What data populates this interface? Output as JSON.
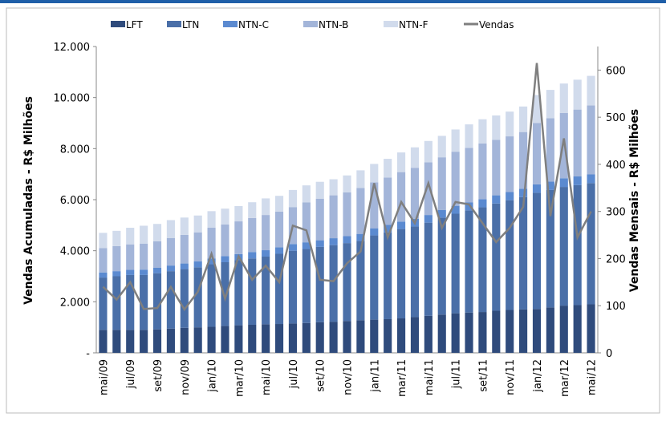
{
  "chart_data": {
    "type": "bar",
    "stacked": true,
    "y_label": "Vendas Acumuladas - R$ Milhões",
    "y2_label": "Vendas Mensais - R$ Milhões",
    "categories": [
      "mai/09",
      null,
      "jul/09",
      null,
      "set/09",
      null,
      "nov/09",
      null,
      "jan/10",
      null,
      "mar/10",
      null,
      "mai/10",
      null,
      "jul/10",
      null,
      "set/10",
      null,
      "nov/10",
      null,
      "jan/11",
      null,
      "mar/11",
      null,
      "mai/11",
      null,
      "jul/11",
      null,
      "set/11",
      null,
      "nov/11",
      null,
      "jan/12",
      null,
      "mar/12",
      null,
      "mai/12"
    ],
    "series": [
      {
        "name": "LFT",
        "color": "#2f4b7c",
        "values": [
          900,
          900,
          900,
          900,
          920,
          950,
          980,
          1000,
          1020,
          1050,
          1080,
          1100,
          1120,
          1130,
          1150,
          1170,
          1200,
          1220,
          1250,
          1280,
          1300,
          1320,
          1350,
          1400,
          1450,
          1500,
          1550,
          1580,
          1600,
          1650,
          1680,
          1700,
          1720,
          1780,
          1850,
          1870,
          1900
        ]
      },
      {
        "name": "LTN",
        "color": "#4a6fa8",
        "values": [
          2050,
          2100,
          2150,
          2150,
          2200,
          2250,
          2300,
          2350,
          2450,
          2500,
          2550,
          2600,
          2650,
          2750,
          2850,
          2900,
          2950,
          3000,
          3050,
          3100,
          3300,
          3400,
          3500,
          3550,
          3650,
          3800,
          3900,
          4000,
          4100,
          4200,
          4300,
          4400,
          4550,
          4600,
          4650,
          4700,
          4750
        ]
      },
      {
        "name": "NTN-C",
        "color": "#5b8ad0",
        "values": [
          200,
          200,
          200,
          210,
          210,
          220,
          220,
          230,
          230,
          240,
          240,
          250,
          250,
          250,
          260,
          260,
          260,
          270,
          270,
          280,
          280,
          290,
          290,
          300,
          300,
          300,
          310,
          310,
          320,
          320,
          320,
          330,
          330,
          330,
          340,
          340,
          340
        ]
      },
      {
        "name": "NTN-B",
        "color": "#a3b5d9",
        "values": [
          950,
          980,
          1000,
          1020,
          1040,
          1080,
          1120,
          1140,
          1200,
          1240,
          1280,
          1330,
          1380,
          1400,
          1450,
          1560,
          1630,
          1680,
          1720,
          1800,
          1800,
          1860,
          1940,
          2000,
          2060,
          2060,
          2120,
          2140,
          2180,
          2170,
          2180,
          2220,
          2400,
          2480,
          2560,
          2620,
          2700
        ]
      },
      {
        "name": "NTN-F",
        "color": "#d1dbec",
        "values": [
          600,
          600,
          650,
          700,
          680,
          700,
          680,
          660,
          650,
          620,
          600,
          620,
          650,
          620,
          670,
          670,
          660,
          630,
          660,
          690,
          720,
          730,
          770,
          800,
          840,
          840,
          870,
          920,
          950,
          960,
          970,
          1000,
          1100,
          1110,
          1150,
          1170,
          1160
        ]
      },
      {
        "name": "Vendas",
        "type": "line",
        "axis": "y2",
        "color": "#7f7f7f",
        "values": [
          140,
          113,
          150,
          93,
          95,
          140,
          92,
          130,
          210,
          115,
          205,
          155,
          185,
          150,
          270,
          260,
          155,
          152,
          190,
          215,
          360,
          245,
          320,
          275,
          360,
          265,
          320,
          315,
          275,
          235,
          265,
          310,
          615,
          290,
          455,
          245,
          300
        ]
      }
    ],
    "ylim": [
      0,
      12000
    ],
    "yticks": [
      {
        "value": 0,
        "label": "-"
      },
      {
        "value": 2000,
        "label": "2.000"
      },
      {
        "value": 4000,
        "label": "4.000"
      },
      {
        "value": 6000,
        "label": "6.000"
      },
      {
        "value": 8000,
        "label": "8.000"
      },
      {
        "value": 10000,
        "label": "10.000"
      },
      {
        "value": 12000,
        "label": "12.000"
      }
    ],
    "y2lim": [
      0,
      650
    ],
    "y2ticks": [
      0,
      100,
      200,
      300,
      400,
      500,
      600
    ]
  }
}
